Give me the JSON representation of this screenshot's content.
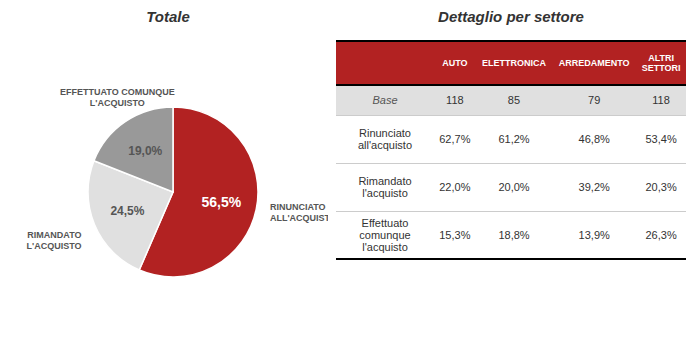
{
  "chart_data": [
    {
      "type": "pie",
      "title": "Totale",
      "categories": [
        "RINUNCIATO\nALL'ACQUISTO",
        "RIMANDATO\nL'ACQUISTO",
        "EFFETTUATO COMUNQUE\nL'ACQUISTO"
      ],
      "values": [
        56.5,
        24.5,
        19.0
      ],
      "value_labels": [
        "56,5%",
        "24,5%",
        "19,0%"
      ],
      "colors": [
        "#b22222",
        "#e0e0e0",
        "#999999"
      ],
      "data_labels": true
    },
    {
      "type": "table",
      "title": "Dettaglio per settore",
      "color": "#b22222",
      "categories": [
        "AUTO",
        "ELETTRONICA",
        "ARREDAMENTO",
        "ALTRI\nSETTORI"
      ],
      "series": [
        {
          "name": "Base",
          "color": "#e0e0e0",
          "values": [
            118,
            85,
            79,
            118
          ]
        },
        {
          "name": "Rinunciato\nall'acquisto",
          "values": [
            62.7,
            61.2,
            46.8,
            53.4
          ],
          "value_labels": [
            "62,7%",
            "61,2%",
            "46,8%",
            "53,4%"
          ]
        },
        {
          "name": "Rimandato\nl'acquisto",
          "values": [
            22.0,
            20.0,
            39.2,
            20.3
          ],
          "value_labels": [
            "22,0%",
            "20,0%",
            "39,2%",
            "20,3%"
          ]
        },
        {
          "name": "Effettuato\ncomunque\nl'acquisto",
          "values": [
            15.3,
            18.8,
            13.9,
            26.3
          ],
          "value_labels": [
            "15,3%",
            "18,8%",
            "13,9%",
            "26,3%"
          ]
        }
      ]
    }
  ]
}
